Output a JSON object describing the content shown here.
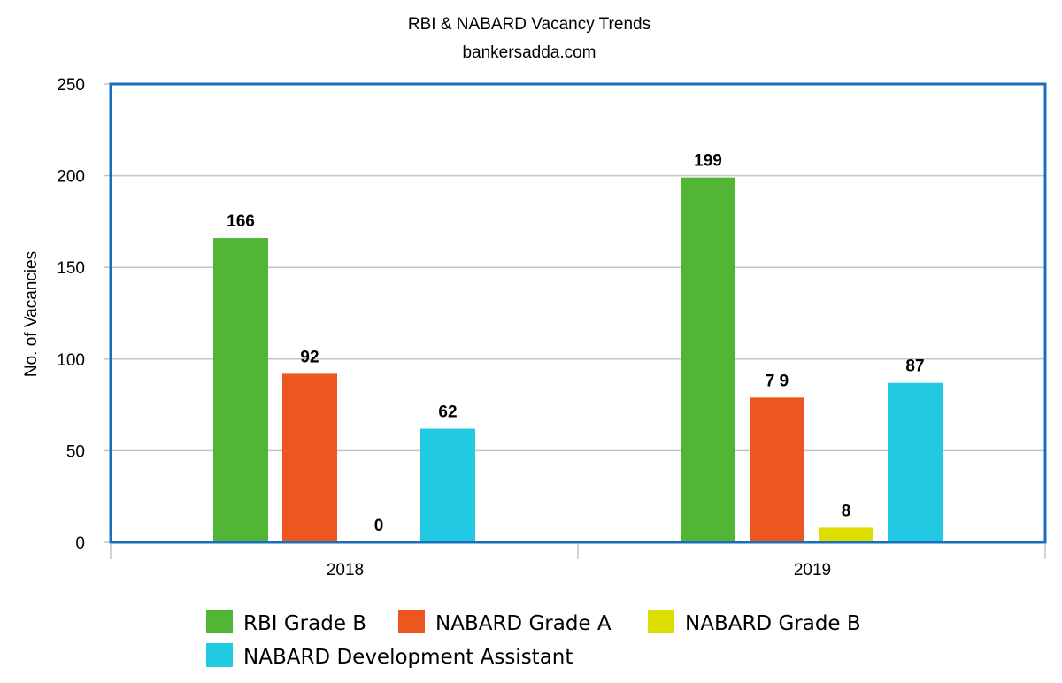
{
  "chart_data": {
    "type": "bar",
    "title": "RBI & NABARD Vacancy Trends",
    "subtitle": "bankersadda.com",
    "ylabel": "No. of Vacancies",
    "xlabel": "",
    "categories": [
      "2018",
      "2019"
    ],
    "ylim": [
      0,
      250
    ],
    "yticks": [
      0,
      50,
      100,
      150,
      200,
      250
    ],
    "grid": true,
    "legend_position": "bottom",
    "series": [
      {
        "name": "RBI Grade B",
        "color": "#53b534",
        "values": [
          166,
          199
        ],
        "labels": [
          "166",
          "199"
        ]
      },
      {
        "name": "NABARD Grade A",
        "color": "#ec561f",
        "values": [
          92,
          79
        ],
        "labels": [
          "92",
          "7 9"
        ]
      },
      {
        "name": "NABARD Grade B",
        "color": "#dddd00",
        "values": [
          0,
          8
        ],
        "labels": [
          "0",
          "8"
        ]
      },
      {
        "name": "NABARD Development Assistant",
        "color": "#22c9e3",
        "values": [
          62,
          87
        ],
        "labels": [
          "62",
          "87"
        ]
      }
    ],
    "frame_color": "#1a6fbd"
  }
}
